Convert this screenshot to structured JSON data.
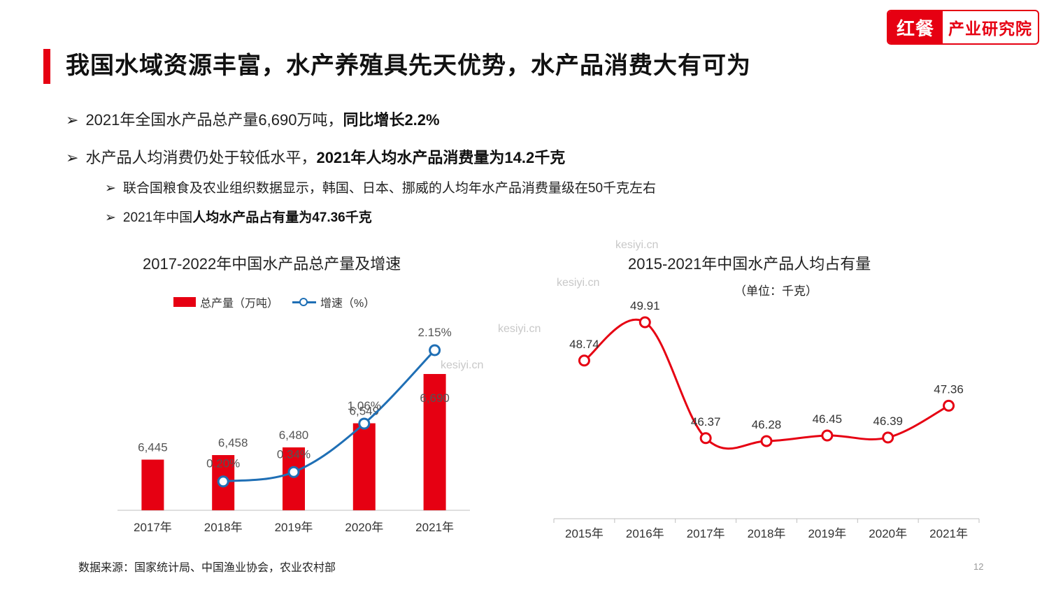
{
  "header": {
    "title": "我国水域资源丰富，水产养殖具先天优势，水产品消费大有可为",
    "logo_left": "红餐",
    "logo_right": "产业研究院"
  },
  "bullets": {
    "arrow": "➢",
    "b1_text": "2021年全国水产品总产量6,690万吨，",
    "b1_bold": "同比增长2.2%",
    "b2_text": "水产品人均消费仍处于较低水平，",
    "b2_bold": "2021年人均水产品消费量为14.2千克",
    "b3_text": "联合国粮食及农业组织数据显示，韩国、日本、挪威的人均年水产品消费量级在50千克左右",
    "b4_text": "2021年中国",
    "b4_bold": "人均水产品占有量为47.36千克"
  },
  "watermark": "kesiyi.cn",
  "footer": {
    "source": "数据来源：国家统计局、中国渔业协会，农业农村部",
    "page_number": "12"
  },
  "chart_data": [
    {
      "type": "bar",
      "title": "2017-2022年中国水产品总产量及增速",
      "categories": [
        "2017年",
        "2018年",
        "2019年",
        "2020年",
        "2021年"
      ],
      "series": [
        {
          "name": "总产量（万吨）",
          "type": "bar",
          "values": [
            6445,
            6458,
            6480,
            6549,
            6690
          ],
          "labels": [
            "6,445",
            "6,458",
            "6,480",
            "6,549",
            "6,690"
          ],
          "color": "#e60012"
        },
        {
          "name": "增速（%）",
          "type": "line",
          "x": [
            "2018年",
            "2019年",
            "2020年",
            "2021年"
          ],
          "values": [
            0.2,
            0.34,
            1.06,
            2.15
          ],
          "labels": [
            "0.20%",
            "0.34%",
            "1.06%",
            "2.15%"
          ],
          "color": "#1f6fb5"
        }
      ],
      "grid": false,
      "legend": "top"
    },
    {
      "type": "line",
      "title": "2015-2021年中国水产品人均占有量",
      "subtitle": "（单位：千克）",
      "categories": [
        "2015年",
        "2016年",
        "2017年",
        "2018年",
        "2019年",
        "2020年",
        "2021年"
      ],
      "series": [
        {
          "values": [
            48.74,
            49.91,
            46.37,
            46.28,
            46.45,
            46.39,
            47.36
          ],
          "labels": [
            "48.74",
            "49.91",
            "46.37",
            "46.28",
            "46.45",
            "46.39",
            "47.36"
          ],
          "color": "#e60012"
        }
      ],
      "grid": false,
      "legend": "none"
    }
  ]
}
